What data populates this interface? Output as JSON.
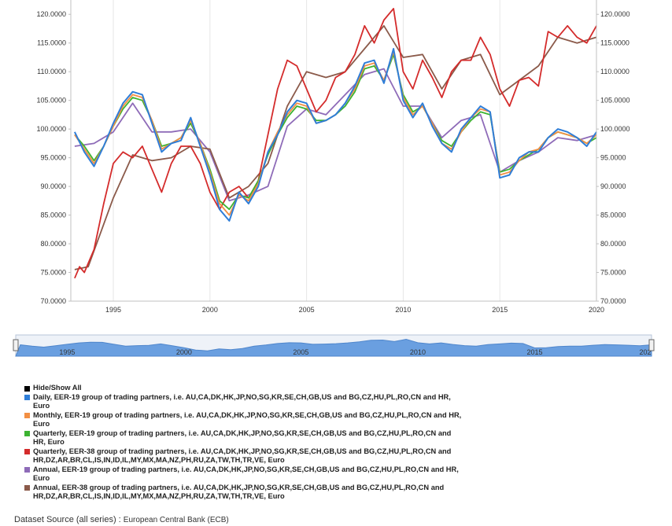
{
  "chart_data": {
    "type": "line",
    "ylim": [
      70,
      122.5
    ],
    "xlim": [
      1992.8,
      2020.0
    ],
    "y_ticks": [
      "70.0000",
      "75.0000",
      "80.0000",
      "85.0000",
      "90.0000",
      "95.0000",
      "100.0000",
      "105.0000",
      "110.0000",
      "115.0000",
      "120.0000"
    ],
    "x_ticks": [
      "1995",
      "2000",
      "2005",
      "2010",
      "2015",
      "2020"
    ],
    "grid": "vertical",
    "series": [
      {
        "name": "Daily, EER-19 group of trading partners, i.e. AU,CA,DK,HK,JP,NO,SG,KR,SE,CH,GB,US and BG,CZ,HU,PL,RO,CN and HR, Euro",
        "color": "#2f7ed8",
        "x": [
          1993.0,
          1993.5,
          1994.0,
          1994.5,
          1995.0,
          1995.5,
          1996.0,
          1996.5,
          1997.0,
          1997.5,
          1998.0,
          1998.5,
          1999.0,
          1999.5,
          2000.0,
          2000.5,
          2001.0,
          2001.5,
          2002.0,
          2002.5,
          2003.0,
          2003.5,
          2004.0,
          2004.5,
          2005.0,
          2005.5,
          2006.0,
          2006.5,
          2007.0,
          2007.5,
          2008.0,
          2008.5,
          2009.0,
          2009.5,
          2010.0,
          2010.5,
          2011.0,
          2011.5,
          2012.0,
          2012.5,
          2013.0,
          2013.5,
          2014.0,
          2014.5,
          2015.0,
          2015.5,
          2016.0,
          2016.5,
          2017.0,
          2017.5,
          2018.0,
          2018.5,
          2019.0,
          2019.5,
          2020.0
        ],
        "y": [
          99.5,
          96.0,
          93.5,
          97.0,
          101.0,
          104.5,
          106.5,
          106.0,
          101.0,
          96.0,
          97.5,
          98.0,
          102.0,
          97.0,
          92.0,
          86.0,
          84.0,
          89.0,
          87.0,
          90.0,
          96.0,
          99.0,
          103.0,
          105.0,
          104.5,
          101.0,
          101.5,
          102.5,
          104.5,
          107.5,
          111.5,
          112.0,
          108.0,
          114.0,
          105.0,
          102.0,
          104.5,
          100.5,
          97.5,
          96.0,
          100.0,
          102.0,
          104.0,
          103.0,
          91.5,
          92.0,
          95.0,
          96.0,
          96.0,
          98.5,
          100.0,
          99.5,
          98.5,
          97.0,
          99.5
        ]
      },
      {
        "name": "Monthly, EER-19 group of trading partners, i.e. AU,CA,DK,HK,JP,NO,SG,KR,SE,CH,GB,US and BG,CZ,HU,PL,RO,CN and HR, Euro",
        "color": "#f28f43",
        "x": [
          1993.0,
          1993.5,
          1994.0,
          1994.5,
          1995.0,
          1995.5,
          1996.0,
          1996.5,
          1997.0,
          1997.5,
          1998.0,
          1998.5,
          1999.0,
          1999.5,
          2000.0,
          2000.5,
          2001.0,
          2001.5,
          2002.0,
          2002.5,
          2003.0,
          2003.5,
          2004.0,
          2004.5,
          2005.0,
          2005.5,
          2006.0,
          2006.5,
          2007.0,
          2007.5,
          2008.0,
          2008.5,
          2009.0,
          2009.5,
          2010.0,
          2010.5,
          2011.0,
          2011.5,
          2012.0,
          2012.5,
          2013.0,
          2013.5,
          2014.0,
          2014.5,
          2015.0,
          2015.5,
          2016.0,
          2016.5,
          2017.0,
          2017.5,
          2018.0,
          2018.5,
          2019.0,
          2019.5,
          2020.0
        ],
        "y": [
          99.0,
          96.5,
          94.0,
          97.0,
          100.5,
          104.0,
          106.0,
          105.5,
          101.5,
          96.5,
          97.5,
          98.5,
          101.5,
          97.5,
          92.5,
          87.0,
          85.0,
          88.5,
          87.5,
          90.5,
          96.0,
          99.5,
          102.5,
          104.5,
          104.0,
          101.0,
          101.5,
          102.5,
          104.5,
          107.0,
          111.0,
          111.5,
          108.5,
          113.5,
          105.5,
          102.5,
          104.0,
          101.0,
          97.5,
          96.5,
          99.5,
          102.0,
          103.5,
          103.0,
          92.0,
          92.5,
          94.5,
          96.0,
          96.5,
          98.5,
          99.5,
          99.0,
          98.5,
          97.5,
          99.0
        ]
      },
      {
        "name": "Quarterly, EER-19 group of trading partners, i.e. AU,CA,DK,HK,JP,NO,SG,KR,SE,CH,GB,US and BG,CZ,HU,PL,RO,CN and HR, Euro",
        "color": "#3cb331",
        "x": [
          1993.0,
          1993.5,
          1994.0,
          1994.5,
          1995.0,
          1995.5,
          1996.0,
          1996.5,
          1997.0,
          1997.5,
          1998.0,
          1998.5,
          1999.0,
          1999.5,
          2000.0,
          2000.5,
          2001.0,
          2001.5,
          2002.0,
          2002.5,
          2003.0,
          2003.5,
          2004.0,
          2004.5,
          2005.0,
          2005.5,
          2006.0,
          2006.5,
          2007.0,
          2007.5,
          2008.0,
          2008.5,
          2009.0,
          2009.5,
          2010.0,
          2010.5,
          2011.0,
          2011.5,
          2012.0,
          2012.5,
          2013.0,
          2013.5,
          2014.0,
          2014.5,
          2015.0,
          2015.5,
          2016.0,
          2016.5,
          2017.0,
          2017.5,
          2018.0,
          2018.5,
          2019.0,
          2019.5,
          2020.0
        ],
        "y": [
          99.0,
          97.0,
          94.5,
          97.0,
          100.5,
          103.5,
          105.5,
          105.0,
          101.5,
          97.0,
          97.5,
          98.5,
          101.0,
          97.5,
          93.0,
          87.5,
          86.0,
          88.5,
          88.0,
          91.0,
          95.5,
          99.0,
          102.0,
          104.0,
          103.5,
          101.5,
          101.5,
          102.5,
          104.0,
          106.5,
          110.5,
          111.0,
          108.5,
          113.0,
          106.0,
          103.0,
          104.0,
          101.0,
          98.0,
          97.0,
          99.5,
          101.5,
          103.0,
          102.5,
          92.5,
          93.0,
          94.5,
          95.5,
          96.5,
          98.5,
          99.5,
          99.0,
          98.5,
          97.5,
          98.5
        ]
      },
      {
        "name": "Quarterly, EER-38 group of trading partners, i.e. AU,CA,DK,HK,JP,NO,SG,KR,SE,CH,GB,US and BG,CZ,HU,PL,RO,CN and HR,DZ,AR,BR,CL,IS,IN,ID,IL,MY,MX,MA,NZ,PH,RU,ZA,TW,TH,TR,VE, Euro",
        "color": "#d42b2b",
        "x": [
          1993.0,
          1993.25,
          1993.5,
          1994.0,
          1994.5,
          1995.0,
          1995.5,
          1996.0,
          1996.5,
          1997.0,
          1997.5,
          1998.0,
          1998.5,
          1999.0,
          1999.5,
          2000.0,
          2000.5,
          2001.0,
          2001.5,
          2002.0,
          2002.5,
          2003.0,
          2003.5,
          2004.0,
          2004.5,
          2005.0,
          2005.5,
          2006.0,
          2006.5,
          2007.0,
          2007.5,
          2008.0,
          2008.5,
          2009.0,
          2009.5,
          2010.0,
          2010.5,
          2011.0,
          2011.5,
          2012.0,
          2012.5,
          2013.0,
          2013.5,
          2014.0,
          2014.5,
          2015.0,
          2015.5,
          2016.0,
          2016.5,
          2017.0,
          2017.5,
          2018.0,
          2018.5,
          2019.0,
          2019.5,
          2020.0
        ],
        "y": [
          74.0,
          76.0,
          75.0,
          79.0,
          87.0,
          94.0,
          96.0,
          95.0,
          97.0,
          93.0,
          89.0,
          94.0,
          97.0,
          97.0,
          94.0,
          89.0,
          86.0,
          89.0,
          90.0,
          88.0,
          91.0,
          99.0,
          107.0,
          112.0,
          111.0,
          107.0,
          103.0,
          105.0,
          109.0,
          110.0,
          113.0,
          118.0,
          115.0,
          119.0,
          121.0,
          110.0,
          107.0,
          112.0,
          109.0,
          105.5,
          110.0,
          112.0,
          112.0,
          116.0,
          113.0,
          107.0,
          104.0,
          108.5,
          109.0,
          107.5,
          117.0,
          116.0,
          118.0,
          116.0,
          115.0,
          118.0
        ]
      },
      {
        "name": "Annual, EER-19 group of trading partners, i.e. AU,CA,DK,HK,JP,NO,SG,KR,SE,CH,GB,US and BG,CZ,HU,PL,RO,CN and HR, Euro",
        "color": "#8e6bb8",
        "x": [
          1993.0,
          1994.0,
          1995.0,
          1996.0,
          1997.0,
          1998.0,
          1999.0,
          2000.0,
          2001.0,
          2002.0,
          2003.0,
          2004.0,
          2005.0,
          2006.0,
          2007.0,
          2008.0,
          2009.0,
          2010.0,
          2011.0,
          2012.0,
          2013.0,
          2014.0,
          2015.0,
          2016.0,
          2017.0,
          2018.0,
          2019.0,
          2020.0
        ],
        "y": [
          97.0,
          97.5,
          99.5,
          104.5,
          99.5,
          99.5,
          100.0,
          96.0,
          87.5,
          88.5,
          90.0,
          100.5,
          103.5,
          102.5,
          106.0,
          109.5,
          110.5,
          104.0,
          104.0,
          98.5,
          101.5,
          102.5,
          92.5,
          94.5,
          96.0,
          98.5,
          98.0,
          99.0
        ]
      },
      {
        "name": "Annual, EER-38 group of trading partners, i.e. AU,CA,DK,HK,JP,NO,SG,KR,SE,CH,GB,US and BG,CZ,HU,PL,RO,CN and HR,DZ,AR,BR,CL,IS,IN,ID,IL,MY,MX,MA,NZ,PH,RU,ZA,TW,TH,TR,VE, Euro",
        "color": "#8b5a4a",
        "x": [
          1993.0,
          1993.7,
          1995.0,
          1996.0,
          1997.0,
          1998.0,
          1999.0,
          2000.0,
          2001.0,
          2002.0,
          2003.0,
          2004.0,
          2005.0,
          2006.0,
          2007.0,
          2008.0,
          2009.0,
          2010.0,
          2011.0,
          2012.0,
          2013.0,
          2014.0,
          2015.0,
          2016.0,
          2017.0,
          2018.0,
          2019.0,
          2020.0
        ],
        "y": [
          75.5,
          76.0,
          88.0,
          95.5,
          94.5,
          95.0,
          97.0,
          96.5,
          88.0,
          90.0,
          94.0,
          104.0,
          110.0,
          109.0,
          110.0,
          114.0,
          118.0,
          112.5,
          113.0,
          107.0,
          112.0,
          113.0,
          106.0,
          108.5,
          111.0,
          116.0,
          115.0,
          116.0
        ]
      }
    ]
  },
  "navigator": {
    "labels": [
      "1995",
      "2000",
      "2005",
      "2010",
      "2015",
      "202"
    ]
  },
  "legend": {
    "toggle_label": "Hide/Show All",
    "items": [
      {
        "label": "Daily, EER-19 group of trading partners, i.e. AU,CA,DK,HK,JP,NO,SG,KR,SE,CH,GB,US and BG,CZ,HU,PL,RO,CN and HR, Euro",
        "color": "#2f7ed8"
      },
      {
        "label": "Monthly, EER-19 group of trading partners, i.e. AU,CA,DK,HK,JP,NO,SG,KR,SE,CH,GB,US and BG,CZ,HU,PL,RO,CN and HR, Euro",
        "color": "#f28f43"
      },
      {
        "label": "Quarterly, EER-19 group of trading partners, i.e. AU,CA,DK,HK,JP,NO,SG,KR,SE,CH,GB,US and BG,CZ,HU,PL,RO,CN and HR, Euro",
        "color": "#3cb331"
      },
      {
        "label": "Quarterly, EER-38 group of trading partners, i.e. AU,CA,DK,HK,JP,NO,SG,KR,SE,CH,GB,US and BG,CZ,HU,PL,RO,CN and HR,DZ,AR,BR,CL,IS,IN,ID,IL,MY,MX,MA,NZ,PH,RU,ZA,TW,TH,TR,VE, Euro",
        "color": "#d42b2b"
      },
      {
        "label": "Annual, EER-19 group of trading partners, i.e. AU,CA,DK,HK,JP,NO,SG,KR,SE,CH,GB,US and BG,CZ,HU,PL,RO,CN and HR, Euro",
        "color": "#8e6bb8"
      },
      {
        "label": "Annual, EER-38 group of trading partners, i.e. AU,CA,DK,HK,JP,NO,SG,KR,SE,CH,GB,US and BG,CZ,HU,PL,RO,CN and HR,DZ,AR,BR,CL,IS,IN,ID,IL,MY,MX,MA,NZ,PH,RU,ZA,TW,TH,TR,VE, Euro",
        "color": "#8b5a4a"
      }
    ]
  },
  "source": {
    "label": "Dataset Source (all series) :",
    "value": "European Central Bank (ECB)"
  }
}
